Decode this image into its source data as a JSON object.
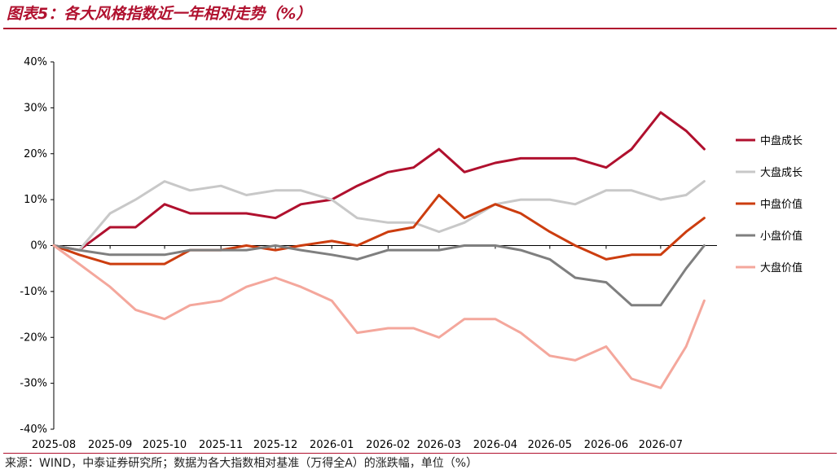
{
  "header": {
    "title": "图表5：各大风格指数近一年相对走势（%）"
  },
  "footer": {
    "source": "来源：WIND，中泰证券研究所；数据为各大指数相对基准（万得全A）的涨跌幅，单位（%）"
  },
  "colors": {
    "accent": "#b0102e"
  },
  "chart_data": {
    "type": "line",
    "title": "",
    "xlabel": "",
    "ylabel": "",
    "x_ticks": [
      "2025-08",
      "2025-09",
      "2025-10",
      "2025-11",
      "2025-12",
      "2026-01",
      "2026-02",
      "2026-03",
      "2026-04",
      "2026-05",
      "2026-06",
      "2026-07"
    ],
    "y_ticks": [
      "40%",
      "30%",
      "20%",
      "10%",
      "0%",
      "-10%",
      "-20%",
      "-30%",
      "-40%"
    ],
    "ylim": [
      -40,
      40
    ],
    "xlim": [
      "2025-08",
      "2026-08"
    ],
    "legend_position": "right",
    "grid": false,
    "series": [
      {
        "name": "中盘成长",
        "color": "#b0102e",
        "x": [
          "2025-08",
          "2025-08-15",
          "2025-09",
          "2025-09-15",
          "2025-10",
          "2025-10-15",
          "2025-11",
          "2025-11-15",
          "2025-12",
          "2025-12-15",
          "2026-01",
          "2026-01-15",
          "2026-02",
          "2026-02-15",
          "2026-03",
          "2026-03-15",
          "2026-04",
          "2026-04-15",
          "2026-05",
          "2026-05-15",
          "2026-06",
          "2026-06-15",
          "2026-07",
          "2026-07-15",
          "2026-07-25"
        ],
        "values": [
          0,
          -1,
          4,
          4,
          9,
          7,
          7,
          7,
          6,
          9,
          10,
          13,
          16,
          17,
          21,
          16,
          18,
          19,
          19,
          19,
          17,
          21,
          29,
          25,
          21
        ]
      },
      {
        "name": "大盘成长",
        "color": "#c8c8c8",
        "x": [
          "2025-08",
          "2025-08-15",
          "2025-09",
          "2025-09-15",
          "2025-10",
          "2025-10-15",
          "2025-11",
          "2025-11-15",
          "2025-12",
          "2025-12-15",
          "2026-01",
          "2026-01-15",
          "2026-02",
          "2026-02-15",
          "2026-03",
          "2026-03-15",
          "2026-04",
          "2026-04-15",
          "2026-05",
          "2026-05-15",
          "2026-06",
          "2026-06-15",
          "2026-07",
          "2026-07-15",
          "2026-07-25"
        ],
        "values": [
          0,
          -1,
          7,
          10,
          14,
          12,
          13,
          11,
          12,
          12,
          10,
          6,
          5,
          5,
          3,
          5,
          9,
          10,
          10,
          9,
          12,
          12,
          10,
          11,
          14
        ]
      },
      {
        "name": "中盘价值",
        "color": "#cc3d0f",
        "x": [
          "2025-08",
          "2025-08-15",
          "2025-09",
          "2025-09-15",
          "2025-10",
          "2025-10-15",
          "2025-11",
          "2025-11-15",
          "2025-12",
          "2025-12-15",
          "2026-01",
          "2026-01-15",
          "2026-02",
          "2026-02-15",
          "2026-03",
          "2026-03-15",
          "2026-04",
          "2026-04-15",
          "2026-05",
          "2026-05-15",
          "2026-06",
          "2026-06-15",
          "2026-07",
          "2026-07-15",
          "2026-07-25"
        ],
        "values": [
          0,
          -2,
          -4,
          -4,
          -4,
          -1,
          -1,
          0,
          -1,
          0,
          1,
          0,
          3,
          4,
          11,
          6,
          9,
          7,
          3,
          0,
          -3,
          -2,
          -2,
          3,
          6
        ]
      },
      {
        "name": "小盘价值",
        "color": "#7f7f7f",
        "x": [
          "2025-08",
          "2025-08-15",
          "2025-09",
          "2025-09-15",
          "2025-10",
          "2025-10-15",
          "2025-11",
          "2025-11-15",
          "2025-12",
          "2025-12-15",
          "2026-01",
          "2026-01-15",
          "2026-02",
          "2026-02-15",
          "2026-03",
          "2026-03-15",
          "2026-04",
          "2026-04-15",
          "2026-05",
          "2026-05-15",
          "2026-06",
          "2026-06-15",
          "2026-07",
          "2026-07-15",
          "2026-07-25"
        ],
        "values": [
          0,
          -1,
          -2,
          -2,
          -2,
          -1,
          -1,
          -1,
          0,
          -1,
          -2,
          -3,
          -1,
          -1,
          -1,
          0,
          0,
          -1,
          -3,
          -7,
          -8,
          -13,
          -13,
          -5,
          0
        ]
      },
      {
        "name": "大盘价值",
        "color": "#f4a79c",
        "x": [
          "2025-08",
          "2025-08-15",
          "2025-09",
          "2025-09-15",
          "2025-10",
          "2025-10-15",
          "2025-11",
          "2025-11-15",
          "2025-12",
          "2025-12-15",
          "2026-01",
          "2026-01-15",
          "2026-02",
          "2026-02-15",
          "2026-03",
          "2026-03-15",
          "2026-04",
          "2026-04-15",
          "2026-05",
          "2026-05-15",
          "2026-06",
          "2026-06-15",
          "2026-07",
          "2026-07-15",
          "2026-07-25"
        ],
        "values": [
          0,
          -4,
          -9,
          -14,
          -16,
          -13,
          -12,
          -9,
          -7,
          -9,
          -12,
          -19,
          -18,
          -18,
          -20,
          -16,
          -16,
          -19,
          -24,
          -25,
          -22,
          -29,
          -31,
          -22,
          -12
        ]
      }
    ]
  }
}
